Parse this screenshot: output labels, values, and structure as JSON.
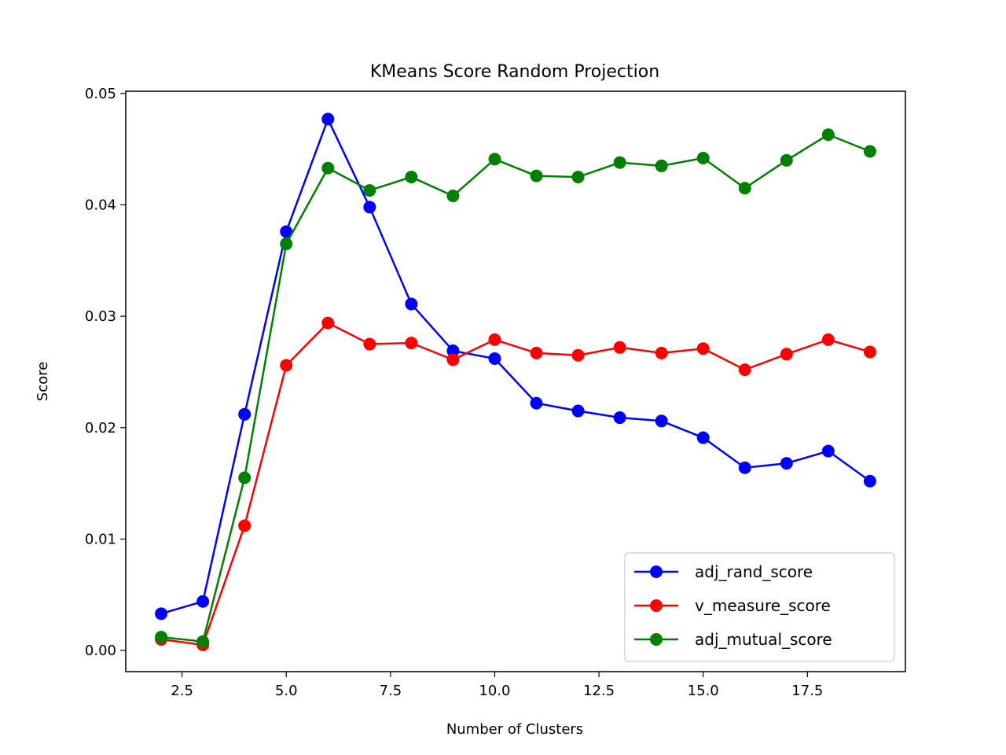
{
  "chart_data": {
    "type": "line",
    "title": "KMeans Score Random Projection",
    "xlabel": "Number of Clusters",
    "ylabel": "Score",
    "xlim": [
      1.15,
      19.85
    ],
    "ylim": [
      -0.0019,
      0.0502
    ],
    "xticks": [
      2.5,
      5.0,
      7.5,
      10.0,
      12.5,
      15.0,
      17.5
    ],
    "xtick_labels": [
      "2.5",
      "5.0",
      "7.5",
      "10.0",
      "12.5",
      "15.0",
      "17.5"
    ],
    "yticks": [
      0.0,
      0.01,
      0.02,
      0.03,
      0.04,
      0.05
    ],
    "ytick_labels": [
      "0.00",
      "0.01",
      "0.02",
      "0.03",
      "0.04",
      "0.05"
    ],
    "grid": false,
    "legend_position": "lower-right",
    "marker": "circle",
    "x": [
      2,
      3,
      4,
      5,
      6,
      7,
      8,
      9,
      10,
      11,
      12,
      13,
      14,
      15,
      16,
      17,
      18,
      19
    ],
    "series": [
      {
        "name": "adj_rand_score",
        "color": "#0000ff",
        "values": [
          0.0033,
          0.0044,
          0.0212,
          0.0376,
          0.0477,
          0.0398,
          0.0311,
          0.0269,
          0.0262,
          0.0222,
          0.0215,
          0.0209,
          0.0206,
          0.0191,
          0.0164,
          0.0168,
          0.0179,
          0.0152
        ]
      },
      {
        "name": "v_measure_score",
        "color": "#ff0000",
        "values": [
          0.001,
          0.0005,
          0.0112,
          0.0256,
          0.0294,
          0.0275,
          0.0276,
          0.0261,
          0.0279,
          0.0267,
          0.0265,
          0.0272,
          0.0267,
          0.0271,
          0.0252,
          0.0266,
          0.0279,
          0.0268
        ]
      },
      {
        "name": "adj_mutual_score",
        "color": "#008000",
        "values": [
          0.0012,
          0.0008,
          0.0155,
          0.0365,
          0.0433,
          0.0413,
          0.0425,
          0.0408,
          0.0441,
          0.0426,
          0.0425,
          0.0438,
          0.0435,
          0.0442,
          0.0415,
          0.044,
          0.0463,
          0.0448
        ]
      }
    ]
  }
}
